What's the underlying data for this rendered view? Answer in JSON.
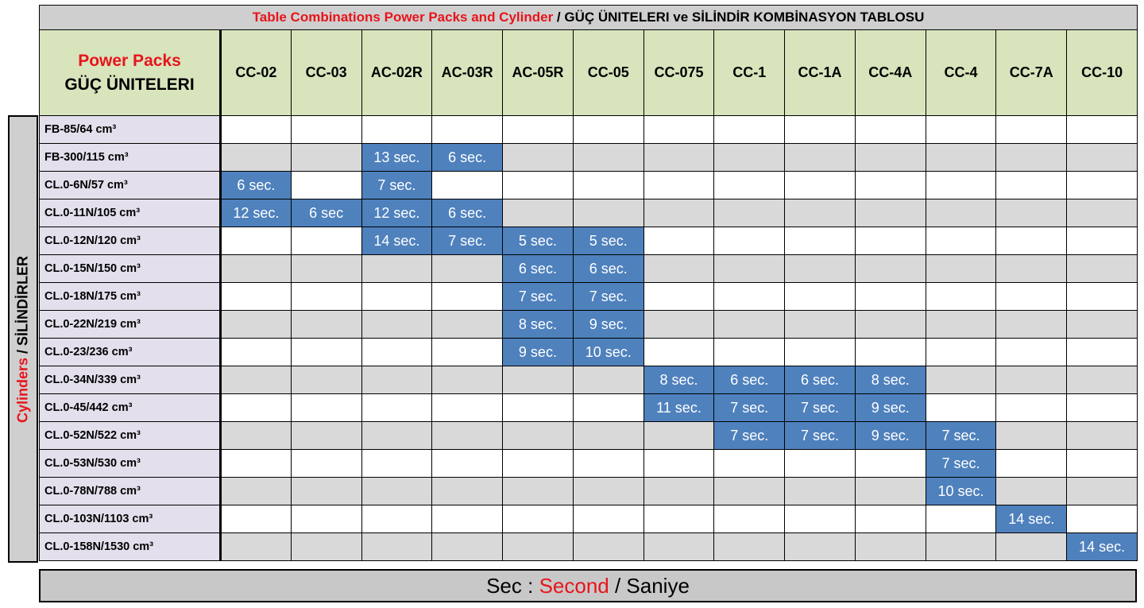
{
  "title": {
    "red_part": "Table Combinations Power Packs and Cylinder",
    "black_part": " / GÜÇ ÜNITELERI ve SİLİNDİR KOMBİNASYON TABLOSU"
  },
  "corner": {
    "line1": "Power Packs",
    "line2": "GÜÇ ÜNITELERI"
  },
  "columns": [
    "CC-02",
    "CC-03",
    "AC-02R",
    "AC-03R",
    "AC-05R",
    "CC-05",
    "CC-075",
    "CC-1",
    "CC-1A",
    "CC-4A",
    "CC-4",
    "CC-7A",
    "CC-10"
  ],
  "side_label": {
    "red_part": "Cylinders",
    "black_part": " / SİLİNDİRLER"
  },
  "rows": [
    {
      "label": "FB-85/64 cm³",
      "cells": [
        "",
        "",
        "",
        "",
        "",
        "",
        "",
        "",
        "",
        "",
        "",
        "",
        ""
      ]
    },
    {
      "label": "FB-300/115 cm³",
      "cells": [
        "",
        "",
        "13 sec.",
        "6 sec.",
        "",
        "",
        "",
        "",
        "",
        "",
        "",
        "",
        ""
      ]
    },
    {
      "label": "CL.0-6N/57 cm³",
      "cells": [
        "6 sec.",
        "",
        "7 sec.",
        "",
        "",
        "",
        "",
        "",
        "",
        "",
        "",
        "",
        ""
      ]
    },
    {
      "label": "CL.0-11N/105 cm³",
      "cells": [
        "12 sec.",
        "6 sec",
        "12 sec.",
        "6 sec.",
        "",
        "",
        "",
        "",
        "",
        "",
        "",
        "",
        ""
      ]
    },
    {
      "label": "CL.0-12N/120 cm³",
      "cells": [
        "",
        "",
        "14 sec.",
        "7 sec.",
        "5 sec.",
        "5 sec.",
        "",
        "",
        "",
        "",
        "",
        "",
        ""
      ]
    },
    {
      "label": "CL.0-15N/150 cm³",
      "cells": [
        "",
        "",
        "",
        "",
        "6 sec.",
        "6 sec.",
        "",
        "",
        "",
        "",
        "",
        "",
        ""
      ]
    },
    {
      "label": "CL.0-18N/175 cm³",
      "cells": [
        "",
        "",
        "",
        "",
        "7 sec.",
        "7 sec.",
        "",
        "",
        "",
        "",
        "",
        "",
        ""
      ]
    },
    {
      "label": "CL.0-22N/219 cm³",
      "cells": [
        "",
        "",
        "",
        "",
        "8 sec.",
        "9 sec.",
        "",
        "",
        "",
        "",
        "",
        "",
        ""
      ]
    },
    {
      "label": "CL.0-23/236 cm³",
      "cells": [
        "",
        "",
        "",
        "",
        "9 sec.",
        "10 sec.",
        "",
        "",
        "",
        "",
        "",
        "",
        ""
      ]
    },
    {
      "label": "CL.0-34N/339 cm³",
      "cells": [
        "",
        "",
        "",
        "",
        "",
        "",
        "8 sec.",
        "6 sec.",
        "6 sec.",
        "8 sec.",
        "",
        "",
        ""
      ]
    },
    {
      "label": "CL.0-45/442 cm³",
      "cells": [
        "",
        "",
        "",
        "",
        "",
        "",
        "11 sec.",
        "7 sec.",
        "7 sec.",
        "9 sec.",
        "",
        "",
        ""
      ]
    },
    {
      "label": "CL.0-52N/522 cm³",
      "cells": [
        "",
        "",
        "",
        "",
        "",
        "",
        "",
        "7 sec.",
        "7 sec.",
        "9 sec.",
        "7 sec.",
        "",
        ""
      ]
    },
    {
      "label": "CL.0-53N/530 cm³",
      "cells": [
        "",
        "",
        "",
        "",
        "",
        "",
        "",
        "",
        "",
        "",
        "7 sec.",
        "",
        ""
      ]
    },
    {
      "label": "CL.0-78N/788 cm³",
      "cells": [
        "",
        "",
        "",
        "",
        "",
        "",
        "",
        "",
        "",
        "",
        "10 sec.",
        "",
        ""
      ]
    },
    {
      "label": "CL.0-103N/1103 cm³",
      "cells": [
        "",
        "",
        "",
        "",
        "",
        "",
        "",
        "",
        "",
        "",
        "",
        "14 sec.",
        ""
      ]
    },
    {
      "label": "CL.0-158N/1530 cm³",
      "cells": [
        "",
        "",
        "",
        "",
        "",
        "",
        "",
        "",
        "",
        "",
        "",
        "",
        "14 sec."
      ]
    }
  ],
  "footer": {
    "part1": "Sec : ",
    "red_part": "Second",
    "part2": " / Saniye"
  },
  "colors": {
    "highlight": "#4f81bd",
    "header": "#d8e4bc",
    "label_bg": "#e3dfec",
    "accent_red": "#e8141b"
  }
}
